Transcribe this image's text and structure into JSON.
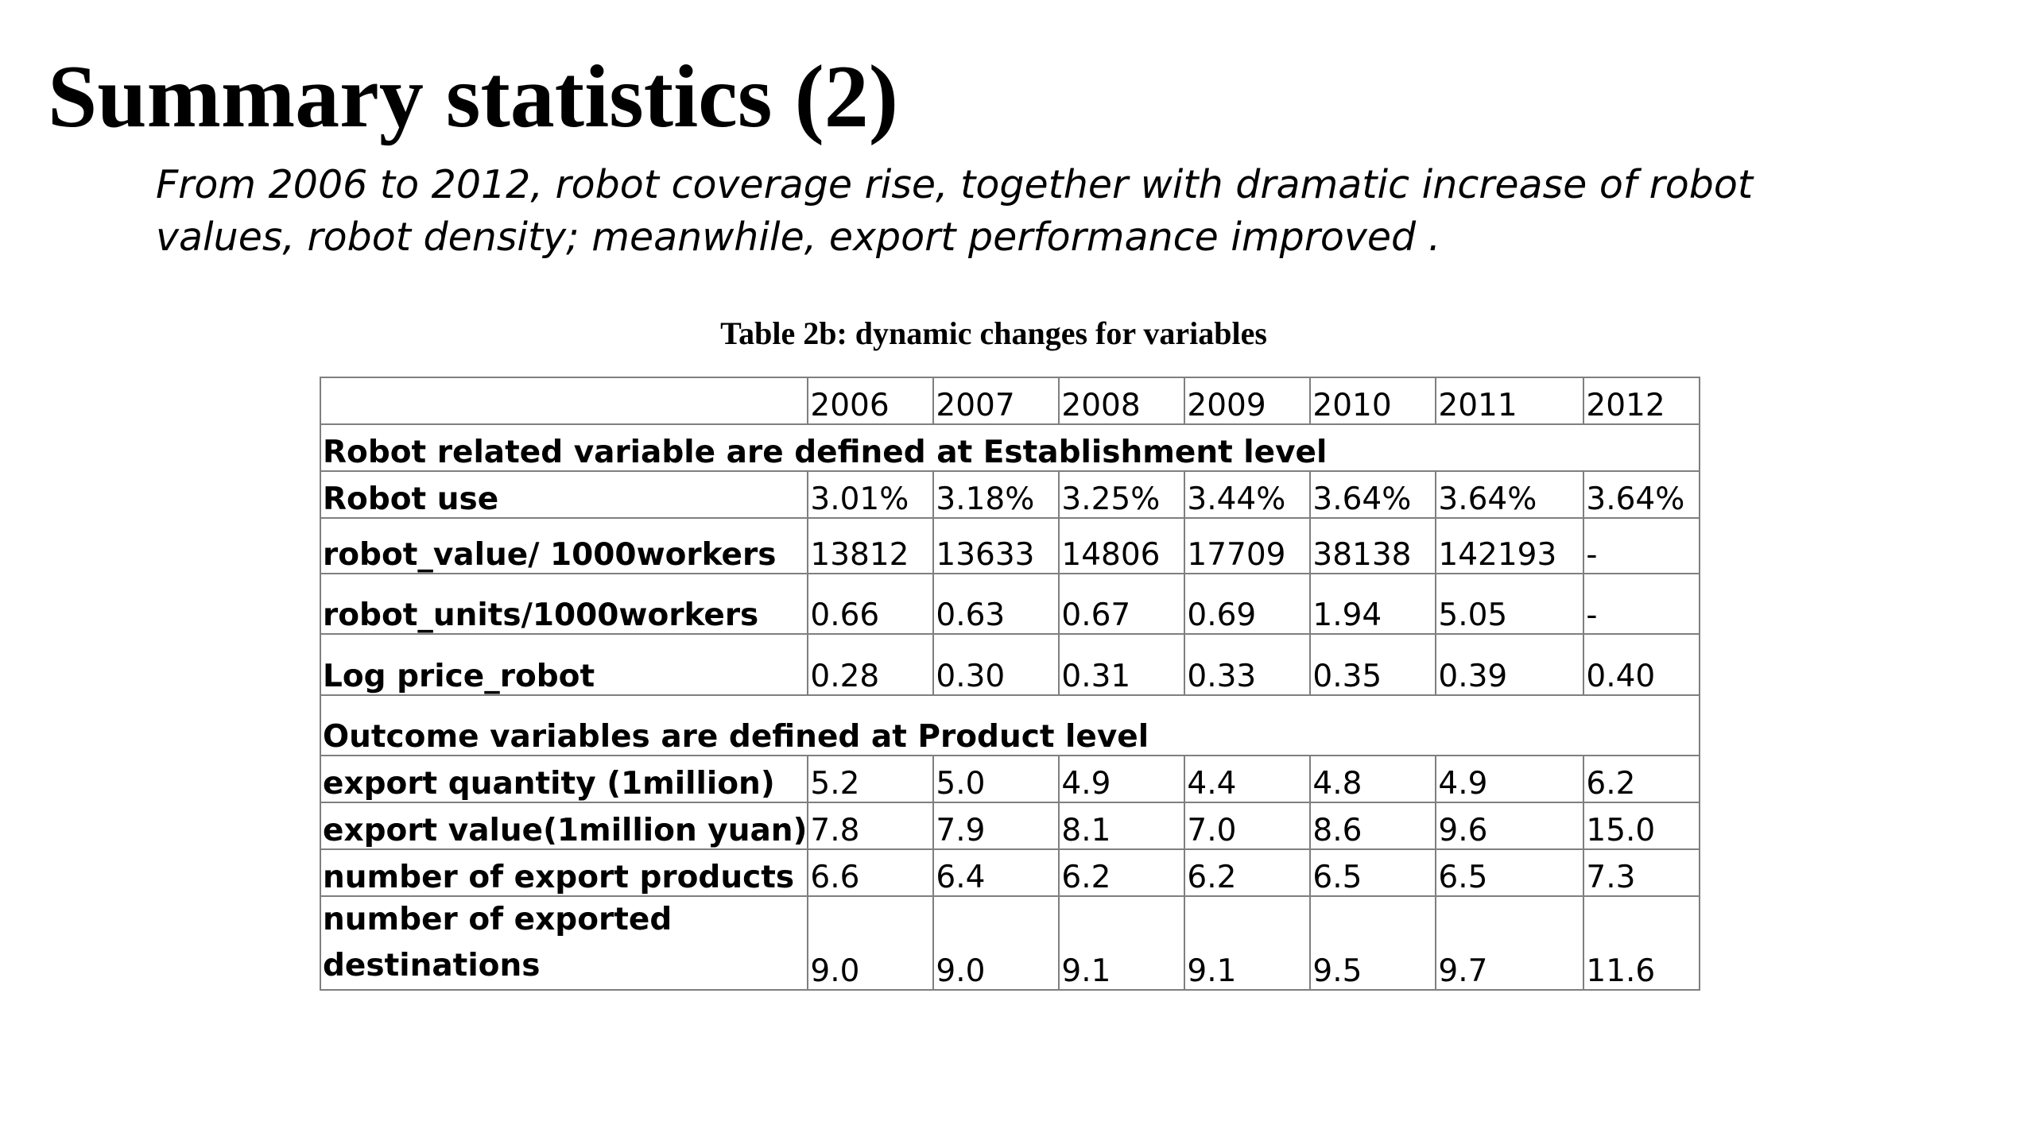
{
  "title": "Summary statistics (2)",
  "subtitle": {
    "line1": "From 2006 to 2012, robot coverage rise, together with dramatic increase of robot",
    "line2": "values, robot density; meanwhile, export performance improved ."
  },
  "table": {
    "caption": "Table 2b: dynamic changes for variables",
    "years": [
      "2006",
      "2007",
      "2008",
      "2009",
      "2010",
      "2011",
      "2012"
    ],
    "section_robot": "Robot related variable are defined at Establishment level",
    "section_outcome": "Outcome variables are defined at Product level",
    "rows": [
      {
        "label": "Robot use",
        "values": [
          "3.01%",
          "3.18%",
          "3.25%",
          "3.44%",
          "3.64%",
          "3.64%",
          "3.64%"
        ]
      },
      {
        "label": "robot_value/ 1000workers",
        "values": [
          "13812",
          "13633",
          "14806",
          "17709",
          "38138",
          "142193",
          "-"
        ]
      },
      {
        "label": "robot_units/1000workers",
        "values": [
          "0.66",
          "0.63",
          "0.67",
          "0.69",
          "1.94",
          "5.05",
          "-"
        ]
      },
      {
        "label": "Log price_robot",
        "values": [
          "0.28",
          "0.30",
          "0.31",
          "0.33",
          "0.35",
          "0.39",
          "0.40"
        ]
      },
      {
        "label": "export quantity (1million)",
        "values": [
          "5.2",
          "5.0",
          "4.9",
          "4.4",
          "4.8",
          "4.9",
          "6.2"
        ]
      },
      {
        "label": "export value(1million yuan)",
        "values": [
          "7.8",
          "7.9",
          "8.1",
          "7.0",
          "8.6",
          "9.6",
          "15.0"
        ]
      },
      {
        "label": "number of export products",
        "values": [
          "6.6",
          "6.4",
          "6.2",
          "6.2",
          "6.5",
          "6.5",
          "7.3"
        ]
      },
      {
        "label": "number of exported destinations",
        "values": [
          "9.0",
          "9.0",
          "9.1",
          "9.1",
          "9.5",
          "9.7",
          "11.6"
        ]
      }
    ]
  }
}
